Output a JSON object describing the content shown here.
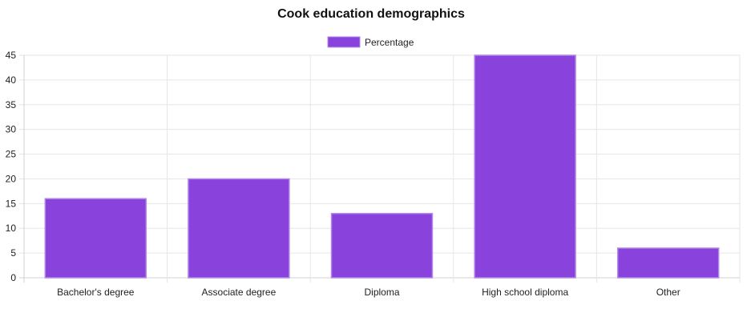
{
  "chart_data": {
    "type": "bar",
    "title": "Cook education demographics",
    "categories": [
      "Bachelor's degree",
      "Associate degree",
      "Diploma",
      "High school diploma",
      "Other"
    ],
    "series": [
      {
        "name": "Percentage",
        "values": [
          16,
          20,
          13,
          45,
          6
        ]
      }
    ],
    "xlabel": "",
    "ylabel": "",
    "ylim": [
      0,
      45
    ],
    "yticks": [
      "0",
      "5",
      "10",
      "15",
      "20",
      "25",
      "30",
      "35",
      "40",
      "45"
    ],
    "grid": true,
    "legend_position": "top",
    "colors": {
      "bar_fill": "#8a42dc",
      "bar_stroke": "#b48ae8"
    }
  }
}
